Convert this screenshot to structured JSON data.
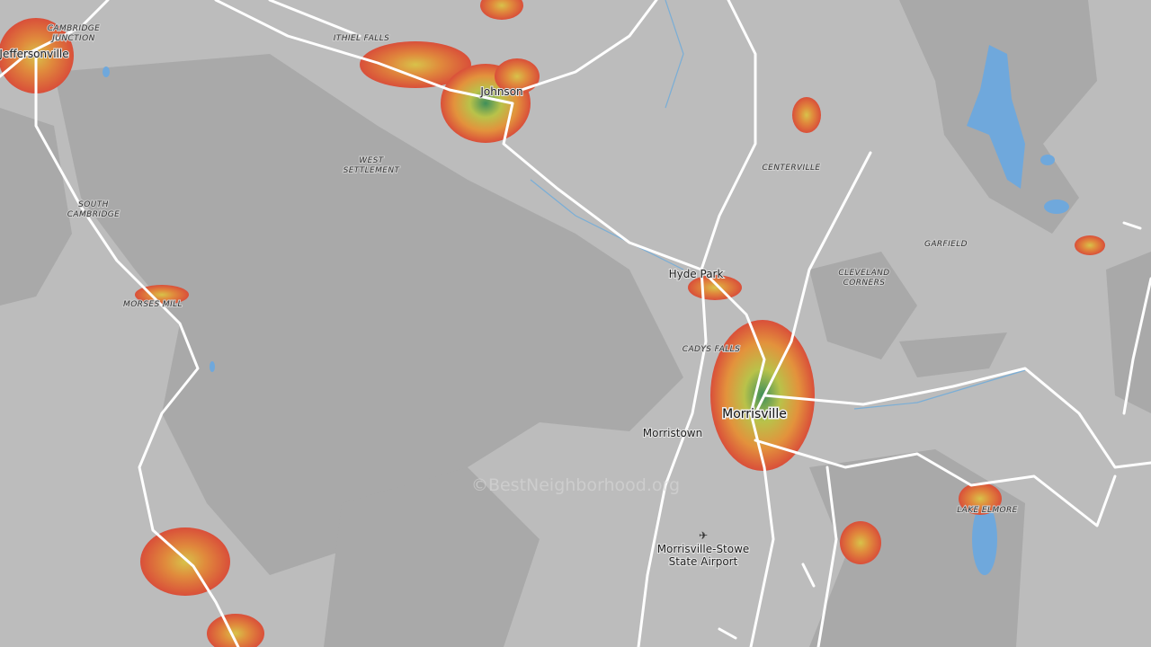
{
  "places": [
    {
      "lines": [
        "Jeffersonville"
      ]
    },
    {
      "lines": [
        "CAMBRIDGE",
        "JUNCTION"
      ]
    },
    {
      "lines": [
        "ITHIEL FALLS"
      ]
    },
    {
      "lines": [
        "Johnson"
      ]
    },
    {
      "lines": [
        "WEST",
        "SETTLEMENT"
      ]
    },
    {
      "lines": [
        "SOUTH",
        "CAMBRIDGE"
      ]
    },
    {
      "lines": [
        "MORSES MILL"
      ]
    },
    {
      "lines": [
        "CENTERVILLE"
      ]
    },
    {
      "lines": [
        "GARFIELD"
      ]
    },
    {
      "lines": [
        "CLEVELAND",
        "CORNERS"
      ]
    },
    {
      "lines": [
        "Hyde Park"
      ]
    },
    {
      "lines": [
        "CADYS FALLS"
      ]
    },
    {
      "lines": [
        "Morrisville"
      ]
    },
    {
      "lines": [
        "Morristown"
      ]
    },
    {
      "lines": [
        "LAKE ELMORE"
      ]
    },
    {
      "lines": [
        "Morrisville-Stowe",
        "State Airport"
      ]
    }
  ],
  "watermark": "©BestNeighborhood.org"
}
